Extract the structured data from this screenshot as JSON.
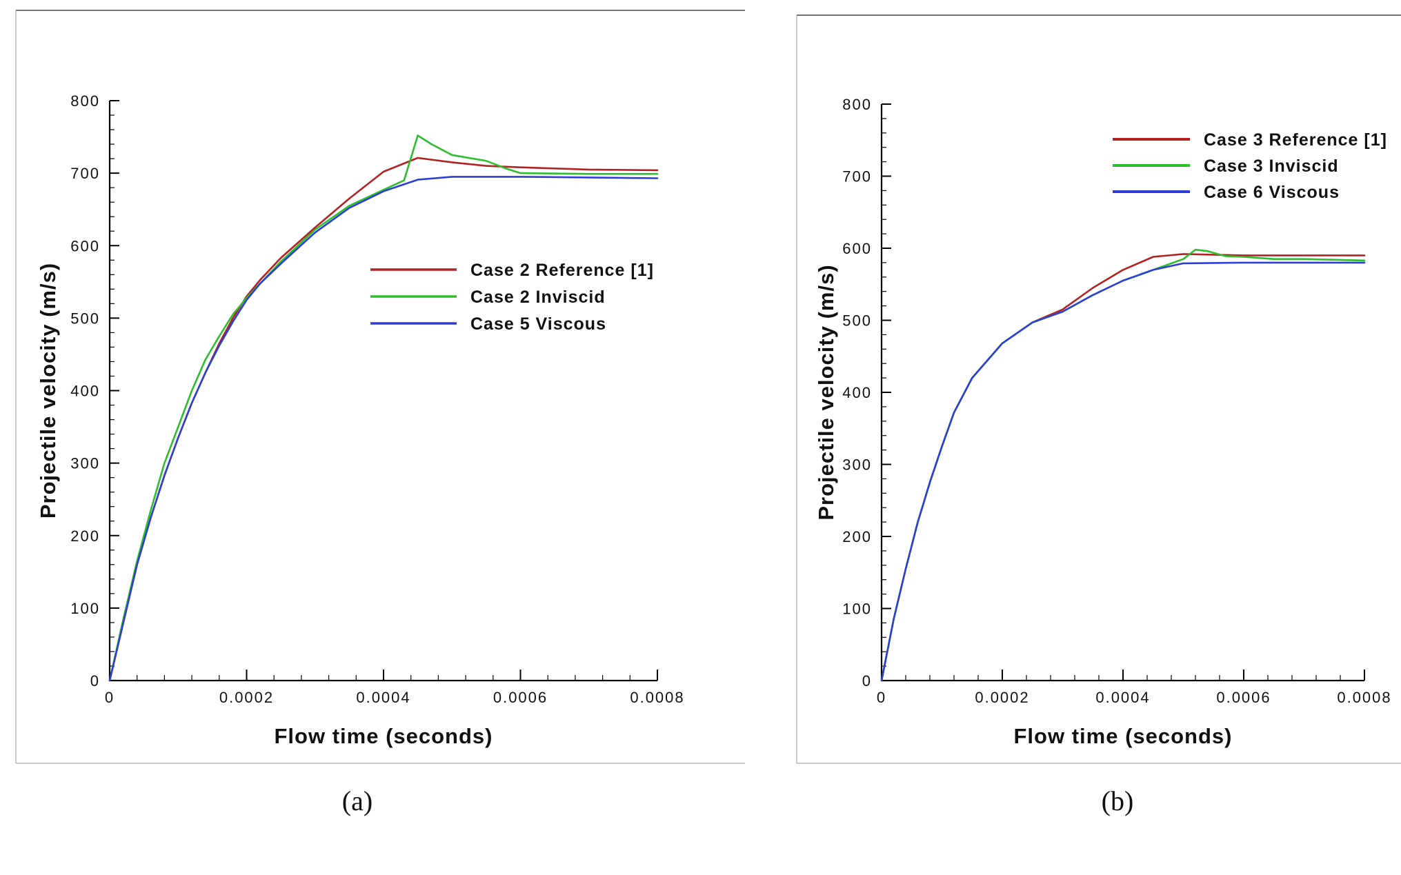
{
  "chart_data": [
    {
      "type": "line",
      "caption": "(a)",
      "xlabel": "Flow time (seconds)",
      "ylabel": "Projectile velocity (m/s)",
      "xlim": [
        0,
        0.0008
      ],
      "ylim": [
        0,
        800
      ],
      "x_ticks": [
        "0",
        "0.0002",
        "0.0004",
        "0.0006",
        "0.0008"
      ],
      "y_ticks": [
        "0",
        "100",
        "200",
        "300",
        "400",
        "500",
        "600",
        "700",
        "800"
      ],
      "grid": false,
      "legend_position": "right-center",
      "series": [
        {
          "name": "Case 2 Reference [1]",
          "color": "#b22222",
          "points": [
            [
              0,
              0
            ],
            [
              2e-05,
              80
            ],
            [
              4e-05,
              160
            ],
            [
              6e-05,
              225
            ],
            [
              8e-05,
              283
            ],
            [
              0.0001,
              335
            ],
            [
              0.00012,
              383
            ],
            [
              0.00014,
              425
            ],
            [
              0.00016,
              465
            ],
            [
              0.00018,
              500
            ],
            [
              0.0002,
              530
            ],
            [
              0.00022,
              553
            ],
            [
              0.00025,
              583
            ],
            [
              0.0003,
              625
            ],
            [
              0.00035,
              665
            ],
            [
              0.0004,
              702
            ],
            [
              0.00045,
              721
            ],
            [
              0.0005,
              715
            ],
            [
              0.00055,
              710
            ],
            [
              0.0006,
              708
            ],
            [
              0.0007,
              705
            ],
            [
              0.0008,
              704
            ]
          ]
        },
        {
          "name": "Case 2 Inviscid",
          "color": "#2ebd2e",
          "points": [
            [
              0,
              0
            ],
            [
              2e-05,
              85
            ],
            [
              4e-05,
              165
            ],
            [
              6e-05,
              235
            ],
            [
              8e-05,
              300
            ],
            [
              0.0001,
              350
            ],
            [
              0.00012,
              400
            ],
            [
              0.00014,
              443
            ],
            [
              0.00016,
              475
            ],
            [
              0.00018,
              505
            ],
            [
              0.0002,
              528
            ],
            [
              0.00022,
              548
            ],
            [
              0.00025,
              578
            ],
            [
              0.0003,
              622
            ],
            [
              0.00035,
              655
            ],
            [
              0.0004,
              677
            ],
            [
              0.00043,
              690
            ],
            [
              0.00045,
              752
            ],
            [
              0.00047,
              740
            ],
            [
              0.0005,
              725
            ],
            [
              0.00055,
              717
            ],
            [
              0.00058,
              706
            ],
            [
              0.0006,
              700
            ],
            [
              0.0007,
              699
            ],
            [
              0.0008,
              699
            ]
          ]
        },
        {
          "name": "Case 5 Viscous",
          "color": "#2b3fd6",
          "points": [
            [
              0,
              0
            ],
            [
              2e-05,
              80
            ],
            [
              4e-05,
              160
            ],
            [
              6e-05,
              225
            ],
            [
              8e-05,
              283
            ],
            [
              0.0001,
              335
            ],
            [
              0.00012,
              383
            ],
            [
              0.00014,
              425
            ],
            [
              0.00016,
              462
            ],
            [
              0.00018,
              495
            ],
            [
              0.0002,
              525
            ],
            [
              0.00022,
              548
            ],
            [
              0.00025,
              575
            ],
            [
              0.0003,
              618
            ],
            [
              0.00035,
              652
            ],
            [
              0.0004,
              675
            ],
            [
              0.00045,
              691
            ],
            [
              0.0005,
              695
            ],
            [
              0.0006,
              695
            ],
            [
              0.0007,
              694
            ],
            [
              0.0008,
              693
            ]
          ]
        }
      ]
    },
    {
      "type": "line",
      "caption": "(b)",
      "xlabel": "Flow time (seconds)",
      "ylabel": "Projectile velocity (m/s)",
      "xlim": [
        0,
        0.0008
      ],
      "ylim": [
        0,
        800
      ],
      "x_ticks": [
        "0",
        "0.0002",
        "0.0004",
        "0.0006",
        "0.0008"
      ],
      "y_ticks": [
        "0",
        "100",
        "200",
        "300",
        "400",
        "500",
        "600",
        "700",
        "800"
      ],
      "grid": false,
      "legend_position": "top-right",
      "series": [
        {
          "name": "Case 3 Reference [1]",
          "color": "#b22222",
          "points": [
            [
              0,
              0
            ],
            [
              2e-05,
              85
            ],
            [
              4e-05,
              155
            ],
            [
              6e-05,
              220
            ],
            [
              8e-05,
              275
            ],
            [
              0.0001,
              325
            ],
            [
              0.00012,
              372
            ],
            [
              0.00015,
              420
            ],
            [
              0.0002,
              468
            ],
            [
              0.00025,
              497
            ],
            [
              0.0003,
              515
            ],
            [
              0.00035,
              545
            ],
            [
              0.0004,
              570
            ],
            [
              0.00045,
              588
            ],
            [
              0.0005,
              592
            ],
            [
              0.00055,
              591
            ],
            [
              0.0006,
              590
            ],
            [
              0.0007,
              590
            ],
            [
              0.0008,
              590
            ]
          ]
        },
        {
          "name": "Case 3 Inviscid",
          "color": "#2ebd2e",
          "points": [
            [
              0,
              0
            ],
            [
              2e-05,
              85
            ],
            [
              4e-05,
              155
            ],
            [
              6e-05,
              220
            ],
            [
              8e-05,
              275
            ],
            [
              0.0001,
              325
            ],
            [
              0.00012,
              372
            ],
            [
              0.00015,
              420
            ],
            [
              0.0002,
              468
            ],
            [
              0.00025,
              497
            ],
            [
              0.0003,
              512
            ],
            [
              0.00035,
              535
            ],
            [
              0.0004,
              555
            ],
            [
              0.00045,
              570
            ],
            [
              0.0005,
              585
            ],
            [
              0.00052,
              598
            ],
            [
              0.00054,
              596
            ],
            [
              0.00057,
              589
            ],
            [
              0.0006,
              588
            ],
            [
              0.00065,
              585
            ],
            [
              0.0007,
              585
            ],
            [
              0.0008,
              583
            ]
          ]
        },
        {
          "name": "Case 6 Viscous",
          "color": "#2b3fd6",
          "points": [
            [
              0,
              0
            ],
            [
              2e-05,
              85
            ],
            [
              4e-05,
              155
            ],
            [
              6e-05,
              220
            ],
            [
              8e-05,
              275
            ],
            [
              0.0001,
              325
            ],
            [
              0.00012,
              372
            ],
            [
              0.00015,
              420
            ],
            [
              0.0002,
              468
            ],
            [
              0.00025,
              497
            ],
            [
              0.0003,
              512
            ],
            [
              0.00035,
              535
            ],
            [
              0.0004,
              555
            ],
            [
              0.00045,
              570
            ],
            [
              0.0005,
              579
            ],
            [
              0.0006,
              580
            ],
            [
              0.0007,
              580
            ],
            [
              0.0008,
              580
            ]
          ]
        }
      ]
    }
  ]
}
